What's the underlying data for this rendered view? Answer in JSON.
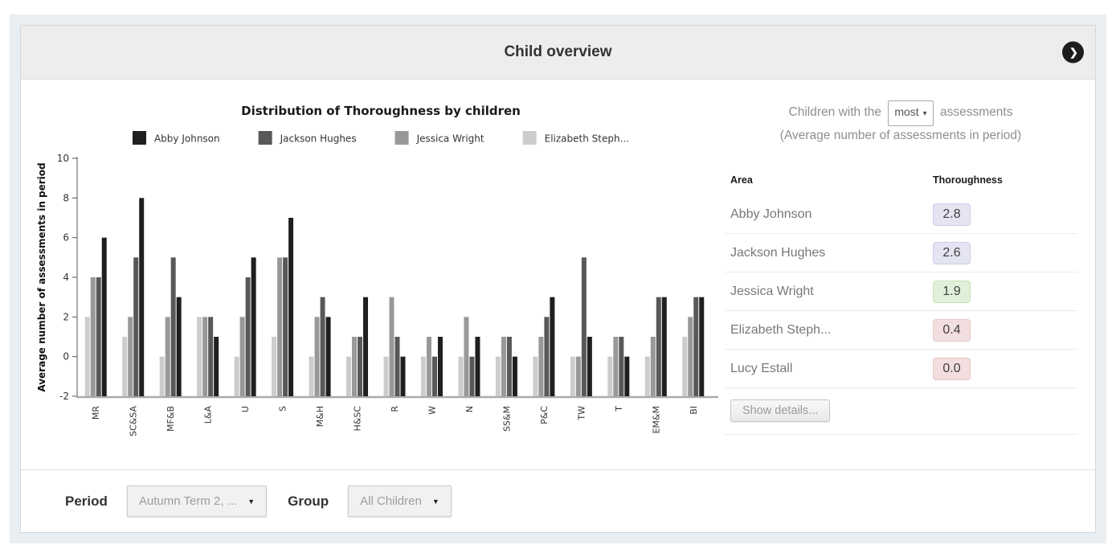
{
  "header": {
    "title": "Child overview"
  },
  "chart_data": {
    "type": "bar",
    "title": "Distribution of Thoroughness by children",
    "ylabel": "Average number of assessments in period",
    "ylim": [
      -2,
      10
    ],
    "yticks": [
      10,
      8,
      6,
      4,
      2,
      0,
      -2
    ],
    "grid": false,
    "legend_position": "top",
    "bar_baseline": -2,
    "categories": [
      "MR",
      "SC&SA",
      "MF&B",
      "L&A",
      "U",
      "S",
      "M&H",
      "H&SC",
      "R",
      "W",
      "N",
      "SS&M",
      "P&C",
      "TW",
      "T",
      "EM&M",
      "BI"
    ],
    "series": [
      {
        "name": "Abby Johnson",
        "color": "#1f1f1f",
        "values": [
          6,
          8,
          3,
          1,
          5,
          7,
          2,
          3,
          0,
          1,
          1,
          0,
          3,
          1,
          0,
          3,
          3
        ]
      },
      {
        "name": "Jackson Hughes",
        "color": "#585858",
        "values": [
          4,
          5,
          5,
          2,
          4,
          5,
          3,
          1,
          1,
          0,
          0,
          1,
          2,
          5,
          1,
          3,
          3
        ]
      },
      {
        "name": "Jessica Wright",
        "color": "#989898",
        "values": [
          4,
          2,
          2,
          2,
          2,
          5,
          2,
          1,
          3,
          1,
          2,
          1,
          1,
          0,
          1,
          1,
          2
        ]
      },
      {
        "name": "Elizabeth Steph...",
        "color": "#cccccc",
        "values": [
          2,
          1,
          0,
          2,
          0,
          1,
          0,
          0,
          0,
          0,
          0,
          0,
          0,
          0,
          0,
          0,
          1
        ]
      }
    ]
  },
  "side_panel": {
    "title_prefix": "Children with the",
    "select_value": "most",
    "select_caret": "▾",
    "title_suffix": "assessments",
    "subtitle": "(Average number of assessments in period)",
    "table": {
      "columns": [
        "Area",
        "Thoroughness"
      ],
      "rows": [
        {
          "name": "Abby Johnson",
          "value": "2.8",
          "badge": "lavender"
        },
        {
          "name": "Jackson Hughes",
          "value": "2.6",
          "badge": "lavender"
        },
        {
          "name": "Jessica Wright",
          "value": "1.9",
          "badge": "green"
        },
        {
          "name": "Elizabeth Steph...",
          "value": "0.4",
          "badge": "pink"
        },
        {
          "name": "Lucy Estall",
          "value": "0.0",
          "badge": "pink"
        }
      ]
    },
    "badge_colors": {
      "lavender": {
        "bg": "#e4e4f3",
        "border": "#cdcde8"
      },
      "green": {
        "bg": "#dff0d8",
        "border": "#c9e2bb"
      },
      "pink": {
        "bg": "#f2dede",
        "border": "#e5c7c7"
      }
    },
    "show_details_label": "Show details..."
  },
  "footer": {
    "period_label": "Period",
    "period_value": "Autumn Term 2, ...",
    "group_label": "Group",
    "group_value": "All Children",
    "caret": "▼"
  },
  "icons": {
    "nav_chevron": "❯"
  },
  "colors": {
    "frame_bg": "#e9eef3",
    "header_bg": "#ededed",
    "nav_circle_bg": "#1d1d20",
    "panel_text": "#8a9095",
    "axis_text": "#333333"
  }
}
